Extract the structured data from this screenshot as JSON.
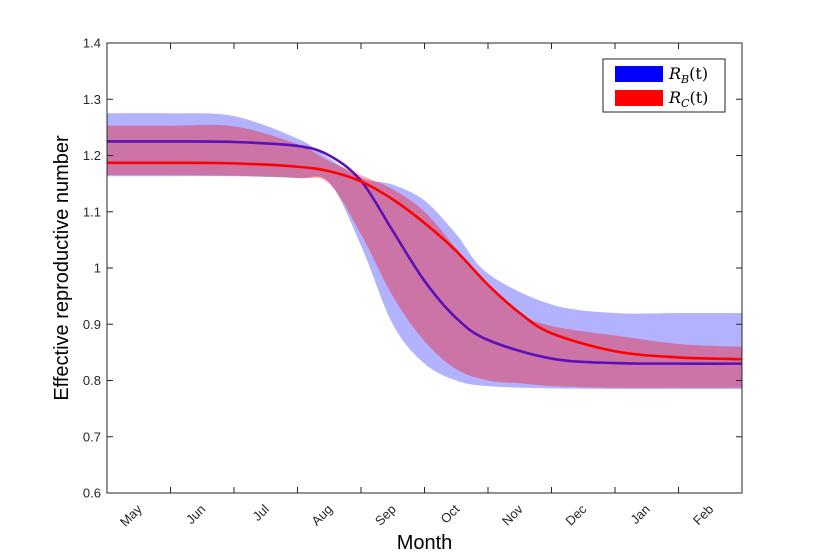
{
  "chart_data": {
    "type": "line",
    "xlabel": "Month",
    "ylabel": "Effective reproductive number",
    "ylim": [
      0.6,
      1.4
    ],
    "yticks": [
      0.6,
      0.7,
      0.8,
      0.9,
      1.0,
      1.1,
      1.2,
      1.3,
      1.4
    ],
    "ytick_labels": [
      "0.6",
      "0.7",
      "0.8",
      "0.9",
      "1",
      "1.1",
      "1.2",
      "1.3",
      "1.4"
    ],
    "xlim": [
      0,
      10
    ],
    "xtick_labels": [
      "May",
      "Jun",
      "Jul",
      "Aug",
      "Sep",
      "Oct",
      "Nov",
      "Dec",
      "Jan",
      "Feb"
    ],
    "grid": false,
    "legend_position": "top-right",
    "series": [
      {
        "name_main": "R",
        "name_sub": "B",
        "name_tail": "(t)",
        "color": "#0000ff",
        "line_color": "#5a12b8",
        "x": [
          0,
          1,
          2,
          3,
          3.5,
          4,
          4.5,
          5,
          5.5,
          6,
          7,
          8,
          9,
          10
        ],
        "values": [
          1.225,
          1.225,
          1.224,
          1.217,
          1.2,
          1.155,
          1.066,
          0.977,
          0.911,
          0.872,
          0.839,
          0.831,
          0.83,
          0.83
        ],
        "lower": [
          1.163,
          1.163,
          1.163,
          1.16,
          1.152,
          1.04,
          0.9,
          0.83,
          0.8,
          0.79,
          0.786,
          0.785,
          0.785,
          0.785
        ],
        "upper": [
          1.275,
          1.275,
          1.27,
          1.23,
          1.195,
          1.16,
          1.148,
          1.12,
          1.06,
          0.99,
          0.935,
          0.92,
          0.92,
          0.92
        ]
      },
      {
        "name_main": "R",
        "name_sub": "C",
        "name_tail": "(t)",
        "color": "#ff0000",
        "line_color": "#ff0000",
        "x": [
          0,
          1,
          2,
          3,
          3.5,
          4,
          4.5,
          5,
          5.5,
          6,
          6.5,
          7,
          8,
          9,
          10
        ],
        "values": [
          1.187,
          1.187,
          1.186,
          1.18,
          1.172,
          1.154,
          1.122,
          1.08,
          1.03,
          0.97,
          0.92,
          0.884,
          0.852,
          0.841,
          0.838
        ],
        "lower": [
          1.165,
          1.165,
          1.164,
          1.16,
          1.15,
          1.06,
          0.95,
          0.87,
          0.82,
          0.8,
          0.795,
          0.79,
          0.787,
          0.787,
          0.787
        ],
        "upper": [
          1.253,
          1.253,
          1.252,
          1.22,
          1.19,
          1.165,
          1.14,
          1.1,
          1.035,
          0.97,
          0.92,
          0.897,
          0.88,
          0.865,
          0.86
        ]
      }
    ]
  }
}
